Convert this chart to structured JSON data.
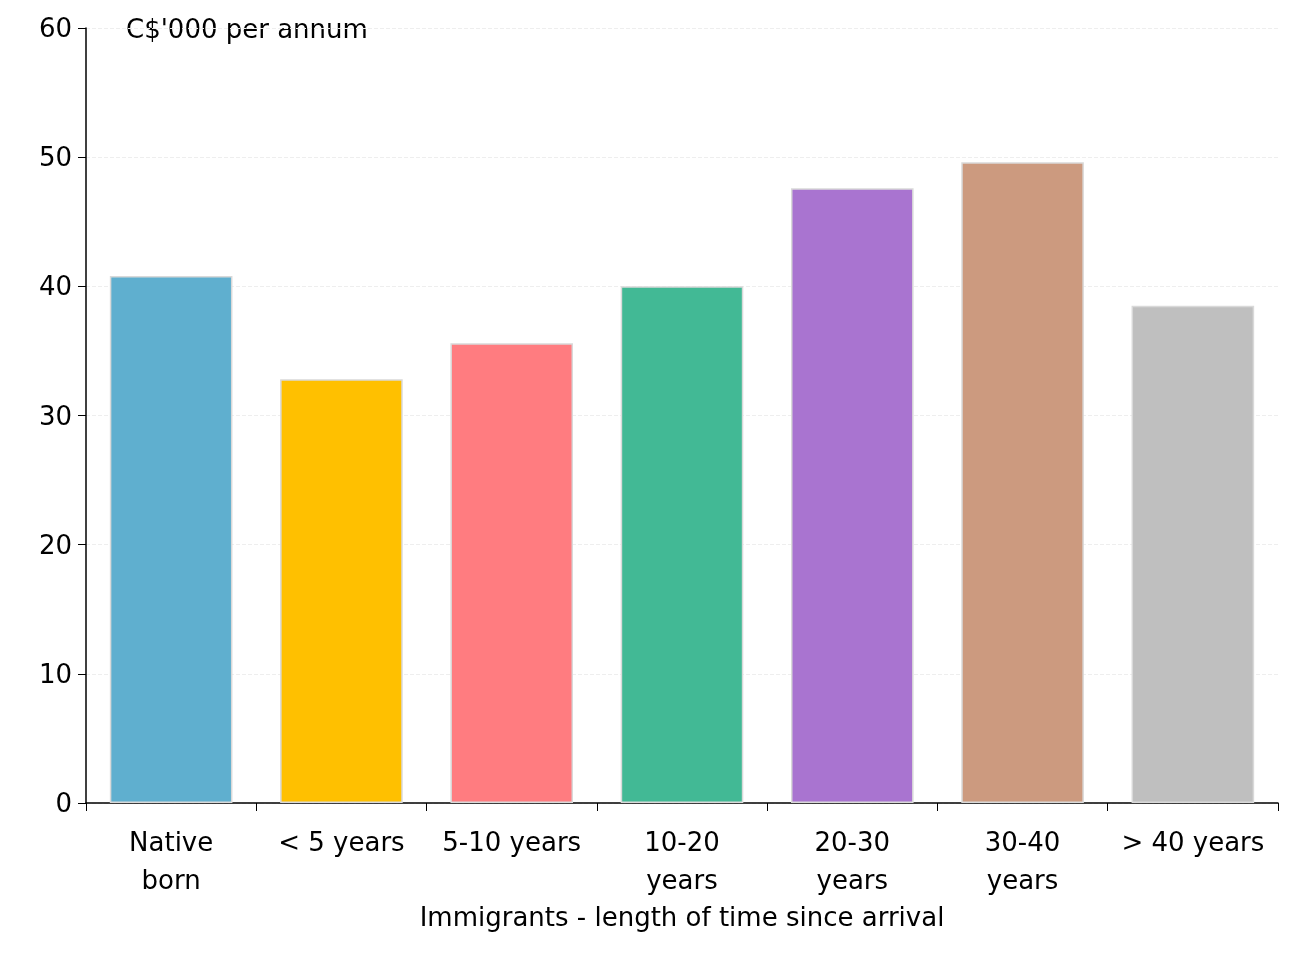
{
  "chart_data": {
    "type": "bar",
    "ylabel": "C$'000 per annum",
    "xlabel": "Immigrants - length of time since arrival",
    "categories": [
      "Native\nborn",
      "< 5 years",
      "5-10 years",
      "10-20\nyears",
      "20-30\nyears",
      "30-40\nyears",
      "> 40 years"
    ],
    "values": [
      40.8,
      32.8,
      35.6,
      40.0,
      47.6,
      49.6,
      38.5
    ],
    "colors": [
      "#5fafcf",
      "#ffc000",
      "#ff7c80",
      "#42b995",
      "#a974d0",
      "#cc9a7f",
      "#bfbfbf"
    ],
    "ylim": [
      0,
      60
    ],
    "yticks": [
      0,
      10,
      20,
      30,
      40,
      50,
      60
    ],
    "grid": "y"
  }
}
